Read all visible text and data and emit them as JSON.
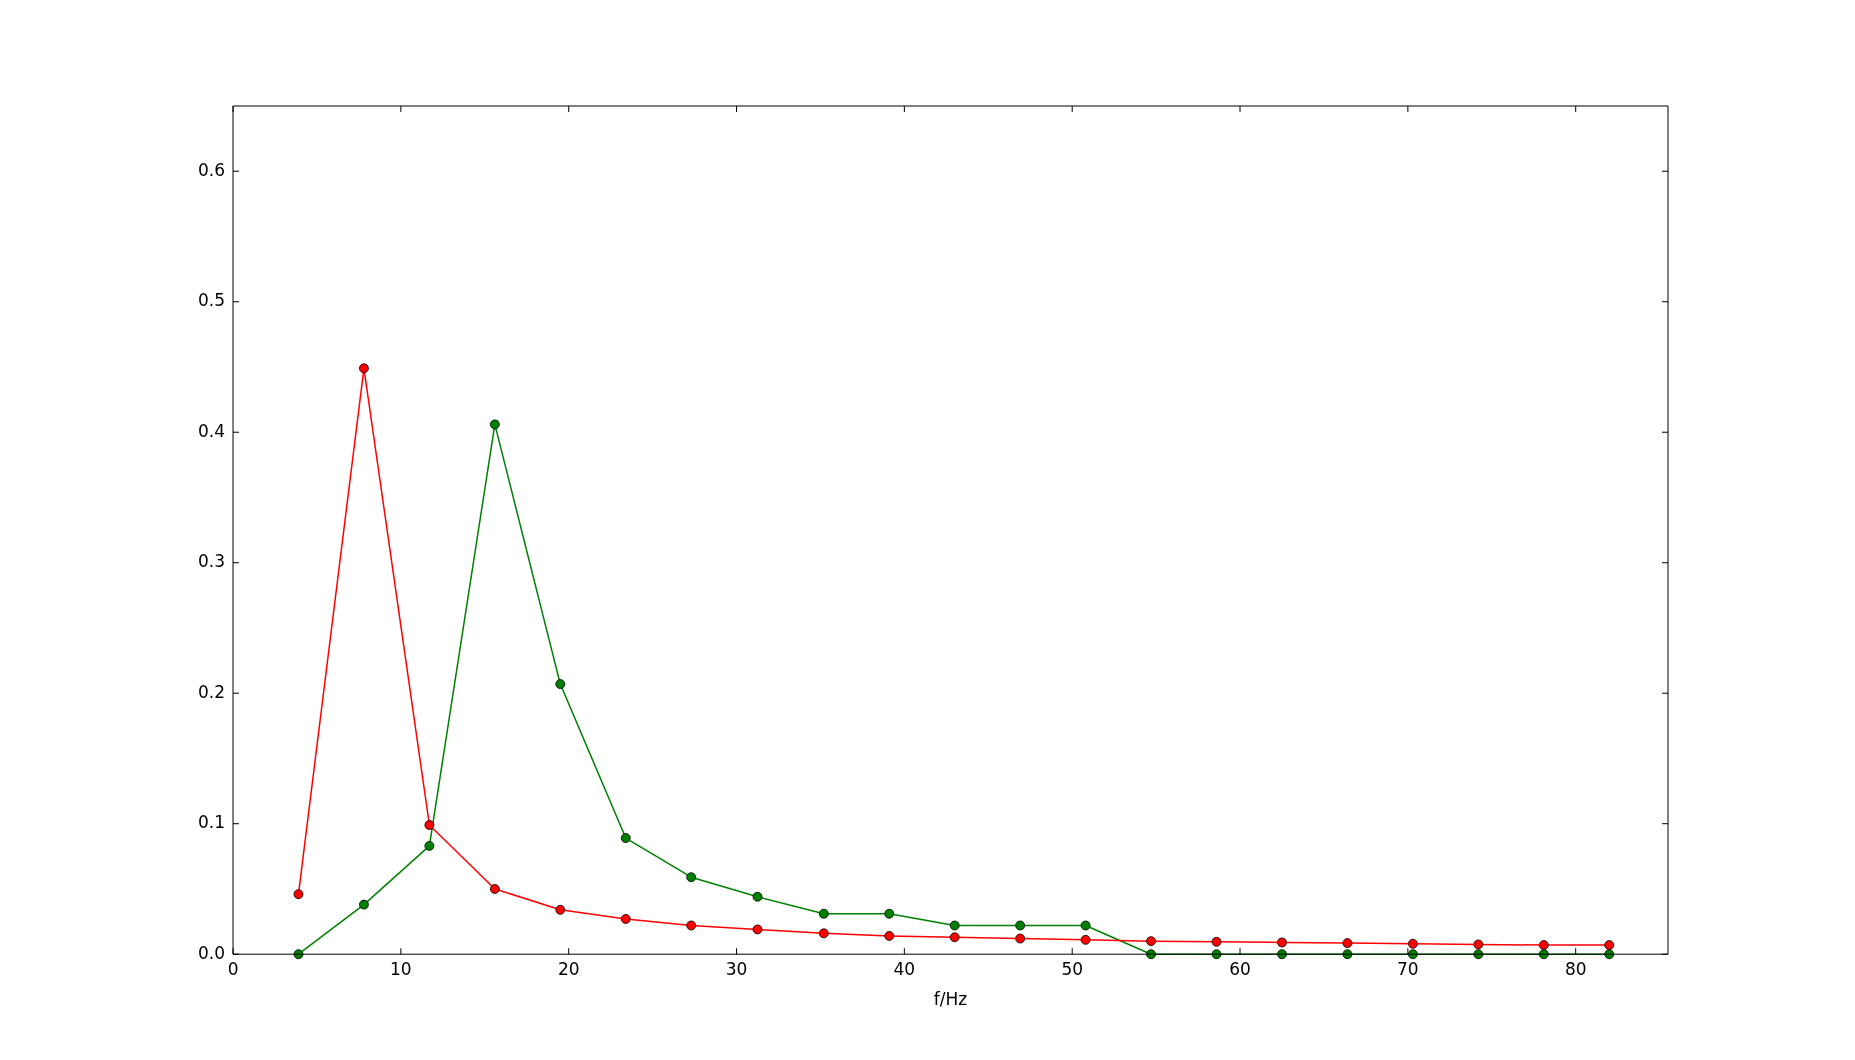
{
  "chart_data": {
    "type": "line",
    "xlabel": "f/Hz",
    "xlim": [
      0,
      85.5
    ],
    "ylim": [
      0,
      0.65
    ],
    "xticks": [
      0,
      10,
      20,
      30,
      40,
      50,
      60,
      70,
      80
    ],
    "yticks": [
      {
        "value": 0,
        "label": "0.0"
      },
      {
        "value": 0.1,
        "label": "0.1"
      },
      {
        "value": 0.2,
        "label": "0.2"
      },
      {
        "value": 0.3,
        "label": "0.3"
      },
      {
        "value": 0.4,
        "label": "0.4"
      },
      {
        "value": 0.5,
        "label": "0.5"
      },
      {
        "value": 0.6,
        "label": "0.6"
      }
    ],
    "grid": false,
    "legend": false,
    "marker": "circle",
    "line_style": "solid",
    "x": [
      3.9,
      7.8,
      11.7,
      15.6,
      19.5,
      23.4,
      27.3,
      31.25,
      35.2,
      39.1,
      43,
      46.9,
      50.8,
      54.7,
      58.6,
      62.5,
      66.4,
      70.3,
      74.2,
      78.1,
      82
    ],
    "series": [
      {
        "color": "#ff0000",
        "values": [
          0.046,
          0.449,
          0.099,
          0.05,
          0.034,
          0.027,
          0.022,
          0.019,
          0.016,
          0.014,
          0.013,
          0.012,
          0.011,
          0.01,
          0.0095,
          0.009,
          0.0085,
          0.008,
          0.0075,
          0.007,
          0.007
        ]
      },
      {
        "color": "#008000",
        "values": [
          0,
          0.038,
          0.083,
          0.406,
          0.207,
          0.089,
          0.059,
          0.044,
          0.031,
          0.031,
          0.022,
          0.022,
          0.022,
          0,
          0,
          0,
          0,
          0,
          0,
          0,
          0
        ]
      }
    ]
  }
}
